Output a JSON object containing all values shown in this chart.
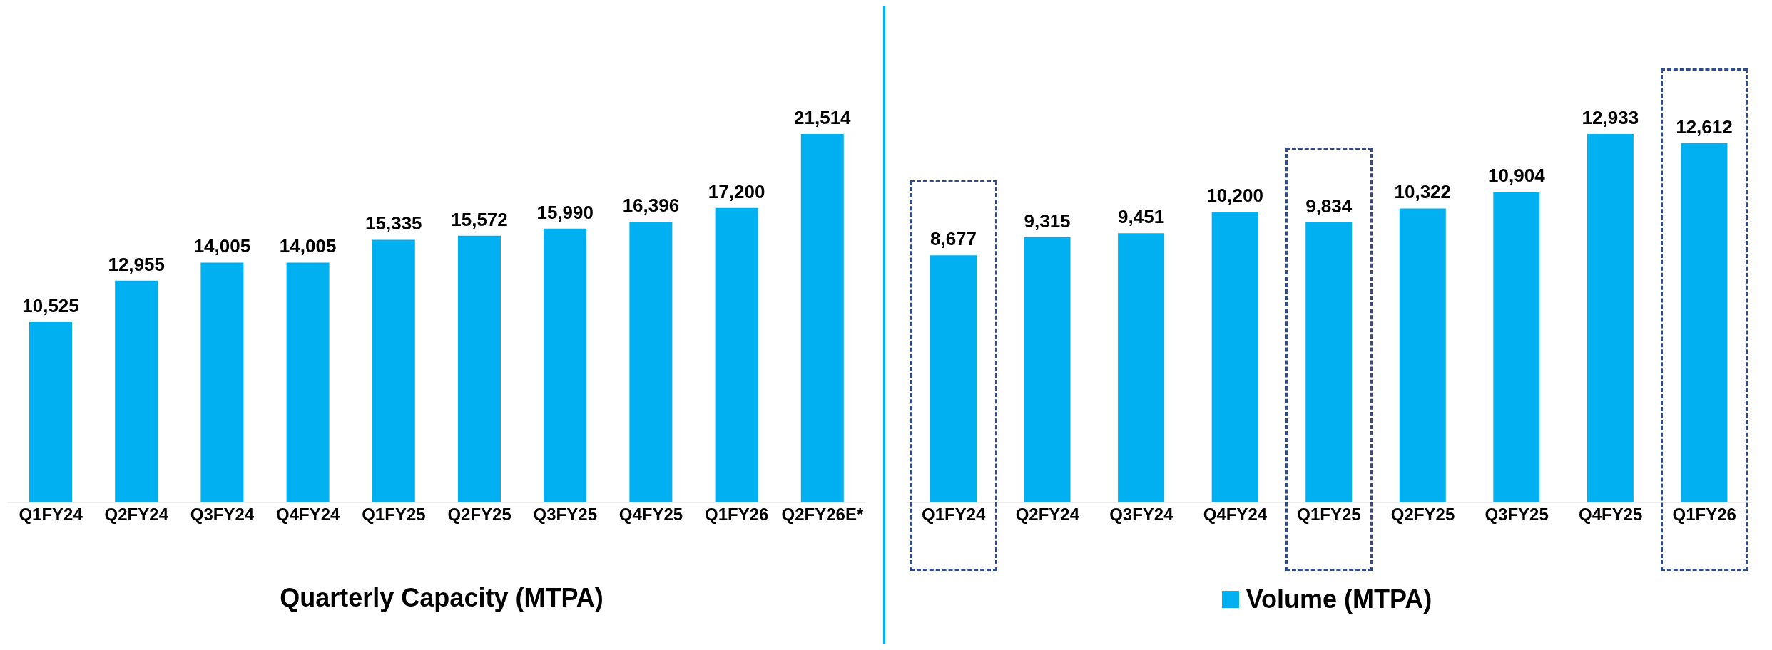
{
  "chart_data": [
    {
      "type": "bar",
      "title": "Quarterly Capacity (MTPA)",
      "categories": [
        "Q1FY24",
        "Q2FY24",
        "Q3FY24",
        "Q4FY24",
        "Q1FY25",
        "Q2FY25",
        "Q3FY25",
        "Q4FY25",
        "Q1FY26",
        "Q2FY26E*"
      ],
      "values": [
        10525,
        12955,
        14005,
        14005,
        15335,
        15572,
        15990,
        16396,
        17200,
        21514
      ],
      "value_labels": [
        "10,525",
        "12,955",
        "14,005",
        "14,005",
        "15,335",
        "15,572",
        "15,990",
        "16,396",
        "17,200",
        "21,514"
      ],
      "color": "#00b0f0"
    },
    {
      "type": "bar",
      "categories": [
        "Q1FY24",
        "Q2FY24",
        "Q3FY24",
        "Q4FY24",
        "Q1FY25",
        "Q2FY25",
        "Q3FY25",
        "Q4FY25",
        "Q1FY26"
      ],
      "series": [
        {
          "name": "Volume (MTPA)",
          "color": "#00b0f0",
          "values": [
            8677,
            9315,
            9451,
            10200,
            9834,
            10322,
            10904,
            12933,
            12612
          ],
          "value_labels": [
            "8,677",
            "9,315",
            "9,451",
            "10,200",
            "9,834",
            "10,322",
            "10,904",
            "12,933",
            "12,612"
          ]
        }
      ],
      "legend": "bottom"
    }
  ]
}
